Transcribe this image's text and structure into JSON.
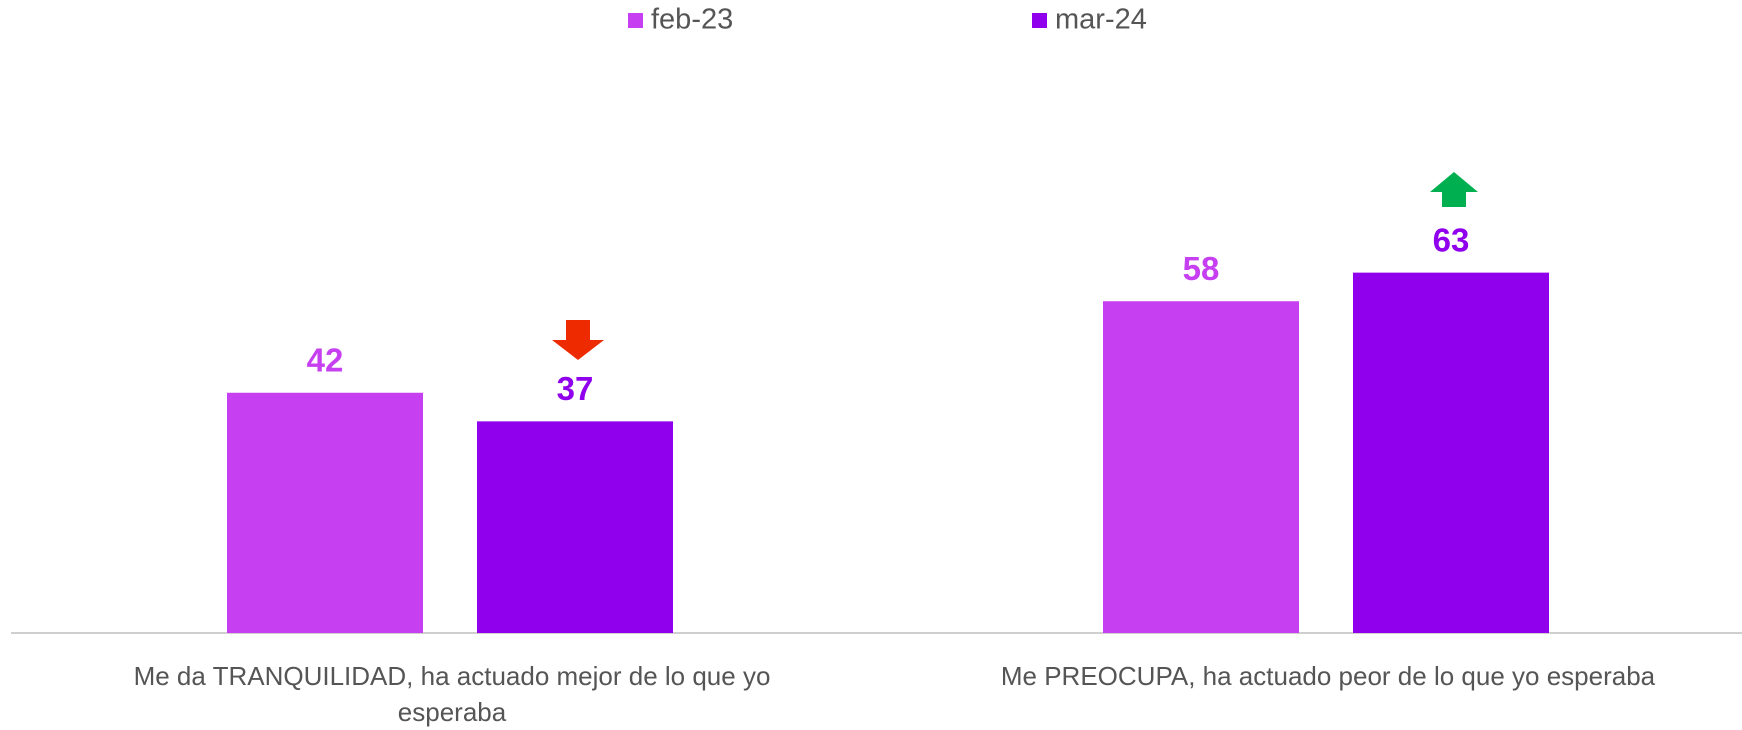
{
  "chart_data": {
    "type": "bar",
    "categories": [
      "Me da TRANQUILIDAD, ha actuado mejor de lo que yo esperaba",
      "Me PREOCUPA, ha actuado peor de lo que yo esperaba"
    ],
    "series": [
      {
        "name": "feb-23",
        "color": "#c63ff0",
        "values": [
          42,
          58
        ]
      },
      {
        "name": "mar-24",
        "color": "#9100ec",
        "values": [
          37,
          63
        ]
      }
    ],
    "legend": "top"
  }
}
